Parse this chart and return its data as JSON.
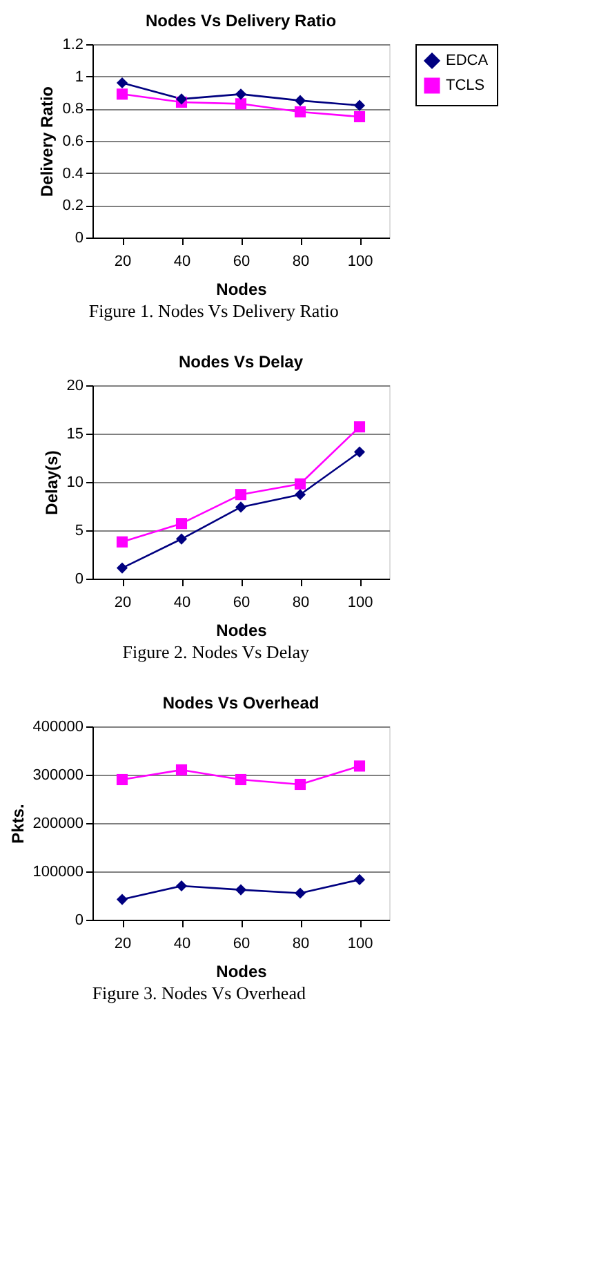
{
  "chart_data": [
    {
      "type": "line",
      "title": "Nodes Vs Delivery Ratio",
      "xlabel": "Nodes",
      "ylabel": "Delivery Ratio",
      "categories": [
        "20",
        "40",
        "60",
        "80",
        "100"
      ],
      "series": [
        {
          "name": "EDCA",
          "color": "#000080",
          "marker": "diamond",
          "values": [
            0.96,
            0.86,
            0.89,
            0.85,
            0.82
          ]
        },
        {
          "name": "TCLS",
          "color": "#ff00ff",
          "marker": "square",
          "values": [
            0.89,
            0.84,
            0.83,
            0.78,
            0.75
          ]
        }
      ],
      "ylim": [
        0,
        1.2
      ],
      "yticks": [
        0,
        0.2,
        0.4,
        0.6,
        0.8,
        1,
        1.2
      ],
      "grid": "y",
      "legend": "right",
      "annotations": [
        "Figure 1. Nodes Vs Delivery Ratio"
      ]
    },
    {
      "type": "line",
      "title": "Nodes Vs Delay",
      "xlabel": "Nodes",
      "ylabel": "Delay(s)",
      "categories": [
        "20",
        "40",
        "60",
        "80",
        "100"
      ],
      "series": [
        {
          "name": "EDCA",
          "color": "#000080",
          "marker": "diamond",
          "values": [
            1.1,
            4.1,
            7.4,
            8.7,
            13.1
          ]
        },
        {
          "name": "TCLS",
          "color": "#ff00ff",
          "marker": "square",
          "values": [
            3.8,
            5.7,
            8.7,
            9.8,
            15.7
          ]
        }
      ],
      "ylim": [
        0,
        20
      ],
      "yticks": [
        0,
        5,
        10,
        15,
        20
      ],
      "grid": "y",
      "legend": "right",
      "annotations": [
        "Figure 2. Nodes Vs Delay"
      ]
    },
    {
      "type": "line",
      "title": "Nodes Vs Overhead",
      "xlabel": "Nodes",
      "ylabel": "Pkts.",
      "categories": [
        "20",
        "40",
        "60",
        "80",
        "100"
      ],
      "series": [
        {
          "name": "EDCA",
          "color": "#000080",
          "marker": "diamond",
          "values": [
            42000,
            70000,
            62000,
            55000,
            83000
          ]
        },
        {
          "name": "TCLS",
          "color": "#ff00ff",
          "marker": "square",
          "values": [
            290000,
            310000,
            290000,
            280000,
            318000
          ]
        }
      ],
      "ylim": [
        0,
        400000
      ],
      "yticks": [
        0,
        100000,
        200000,
        300000,
        400000
      ],
      "grid": "y",
      "legend": "right",
      "annotations": [
        "Figure 3. Nodes Vs Overhead"
      ]
    }
  ]
}
